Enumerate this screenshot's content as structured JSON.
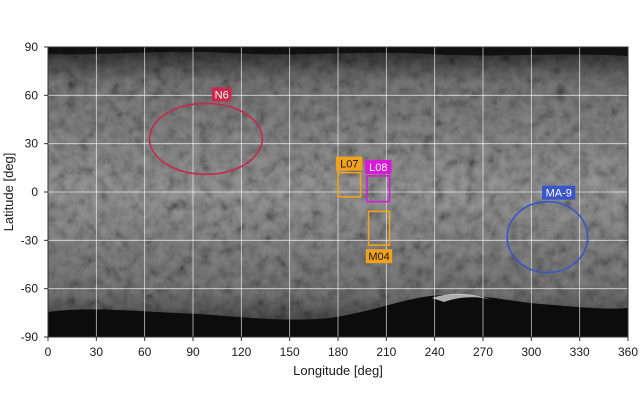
{
  "map": {
    "xlabel": "Longitude [deg]",
    "ylabel": "Latitude [deg]",
    "x_ticks": [
      "0",
      "30",
      "60",
      "90",
      "120",
      "150",
      "180",
      "210",
      "240",
      "270",
      "300",
      "330",
      "360"
    ],
    "y_ticks": [
      "90",
      "60",
      "30",
      "0",
      "-30",
      "-60",
      "-90"
    ],
    "xlim": [
      0,
      360
    ],
    "ylim": [
      -90,
      90
    ],
    "grid": true,
    "colors": {
      "surface": "#8a8a8a",
      "shadow": "#0c0c0c",
      "grid": "#ffffff"
    }
  },
  "regions": [
    {
      "label": "N6",
      "shape": "ellipse",
      "lon_center": 98,
      "lat_center": 33,
      "lon_radius": 35,
      "lat_radius": 22,
      "color": "#c8284a",
      "text_color": "#ffffff"
    },
    {
      "label": "L07",
      "shape": "rect",
      "lon_min": 180,
      "lon_max": 194,
      "lat_min": -3,
      "lat_max": 12,
      "color": "#f2a11a",
      "text_color": "#1a1a1a"
    },
    {
      "label": "L08",
      "shape": "rect",
      "lon_min": 198,
      "lon_max": 212,
      "lat_min": -6,
      "lat_max": 10,
      "color": "#d81ad8",
      "text_color": "#ffffff"
    },
    {
      "label": "M04",
      "shape": "rect",
      "lon_min": 199,
      "lon_max": 212,
      "lat_min": -33,
      "lat_max": -12,
      "color": "#f2a11a",
      "text_color": "#1a1a1a"
    },
    {
      "label": "MA-9",
      "shape": "ellipse",
      "lon_center": 310,
      "lat_center": -28,
      "lon_radius": 25,
      "lat_radius": 22,
      "color": "#3a55c8",
      "text_color": "#ffffff"
    }
  ]
}
